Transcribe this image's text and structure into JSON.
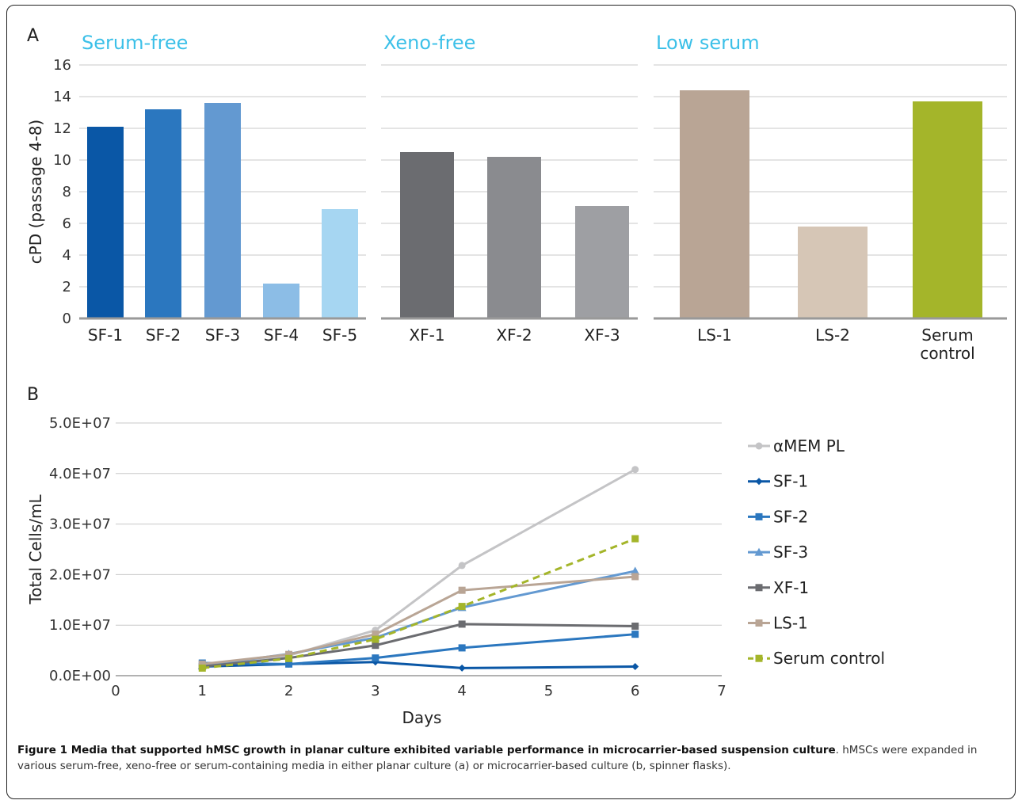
{
  "chart_data": [
    {
      "type": "bar",
      "panel_label": "A",
      "ylabel": "cPD (passage 4-8)",
      "ylim": [
        0,
        16
      ],
      "yticks": [
        "0",
        "2",
        "4",
        "6",
        "8",
        "10",
        "12",
        "14",
        "16"
      ],
      "grid": true,
      "groups": [
        {
          "title": "Serum-free",
          "title_color": "#3cc0e8",
          "categories": [
            "SF-1",
            "SF-2",
            "SF-3",
            "SF-4",
            "SF-5"
          ],
          "values": [
            12.1,
            13.2,
            13.6,
            2.2,
            6.9
          ],
          "colors": [
            "#0a57a6",
            "#2b77bf",
            "#6399d1",
            "#8cbde6",
            "#a6d6f2"
          ]
        },
        {
          "title": "Xeno-free",
          "title_color": "#3cc0e8",
          "categories": [
            "XF-1",
            "XF-2",
            "XF-3"
          ],
          "values": [
            10.5,
            10.2,
            7.1
          ],
          "colors": [
            "#6b6c70",
            "#8a8b8f",
            "#9e9fa3"
          ]
        },
        {
          "title": "Low serum",
          "title_color": "#3cc0e8",
          "categories": [
            "LS-1",
            "LS-2",
            "Serum control"
          ],
          "category_lines": [
            [
              "LS-1"
            ],
            [
              "LS-2"
            ],
            [
              "Serum",
              "control"
            ]
          ],
          "values": [
            14.4,
            5.8,
            13.7
          ],
          "colors": [
            "#b9a595",
            "#d6c6b6",
            "#a4b52a"
          ]
        }
      ]
    },
    {
      "type": "line",
      "panel_label": "B",
      "xlabel": "Days",
      "ylabel": "Total Cells/mL",
      "xlim": [
        0,
        7
      ],
      "xticks": [
        "0",
        "1",
        "2",
        "3",
        "4",
        "5",
        "6",
        "7"
      ],
      "ylim": [
        0,
        50000000
      ],
      "yticks": [
        "0.0E+00",
        "1.0E+07",
        "2.0E+07",
        "3.0E+07",
        "4.0E+07",
        "5.0E+07"
      ],
      "grid": true,
      "legend_position": "right",
      "series": [
        {
          "name": "αMEM PL",
          "color": "#c4c4c6",
          "marker": "circle",
          "dashed": false,
          "x": [
            1,
            2,
            3,
            4,
            6
          ],
          "y": [
            2000000,
            4000000,
            9000000,
            21800000,
            40800000
          ]
        },
        {
          "name": "SF-1",
          "color": "#0a57a6",
          "marker": "diamond",
          "dashed": false,
          "x": [
            1,
            2,
            3,
            4,
            6
          ],
          "y": [
            1800000,
            2300000,
            2700000,
            1500000,
            1800000
          ]
        },
        {
          "name": "SF-2",
          "color": "#2b77bf",
          "marker": "square",
          "dashed": false,
          "x": [
            1,
            2,
            3,
            4,
            6
          ],
          "y": [
            2500000,
            2300000,
            3500000,
            5500000,
            8200000
          ]
        },
        {
          "name": "SF-3",
          "color": "#6399d1",
          "marker": "triangle",
          "dashed": false,
          "x": [
            1,
            2,
            3,
            4,
            6
          ],
          "y": [
            2000000,
            4300000,
            7500000,
            13500000,
            20700000
          ]
        },
        {
          "name": "XF-1",
          "color": "#6b6c70",
          "marker": "square",
          "dashed": false,
          "x": [
            1,
            2,
            3,
            4,
            6
          ],
          "y": [
            1800000,
            3500000,
            6000000,
            10200000,
            9800000
          ]
        },
        {
          "name": "LS-1",
          "color": "#b9a595",
          "marker": "square",
          "dashed": false,
          "x": [
            1,
            2,
            3,
            4,
            6
          ],
          "y": [
            2300000,
            4200000,
            8200000,
            16900000,
            19600000
          ]
        },
        {
          "name": "Serum control",
          "color": "#a4b52a",
          "marker": "square",
          "dashed": true,
          "x": [
            1,
            2,
            3,
            4,
            6
          ],
          "y": [
            1500000,
            3400000,
            7200000,
            13700000,
            27100000
          ]
        }
      ]
    }
  ],
  "caption": {
    "title": "Figure 1 Media that supported hMSC growth in planar culture exhibited variable performance in microcarrier-based suspension culture",
    "body": ". hMSCs were expanded in various serum-free, xeno-free or serum-containing media in either planar culture (a) or microcarrier-based culture (b, spinner flasks)."
  }
}
